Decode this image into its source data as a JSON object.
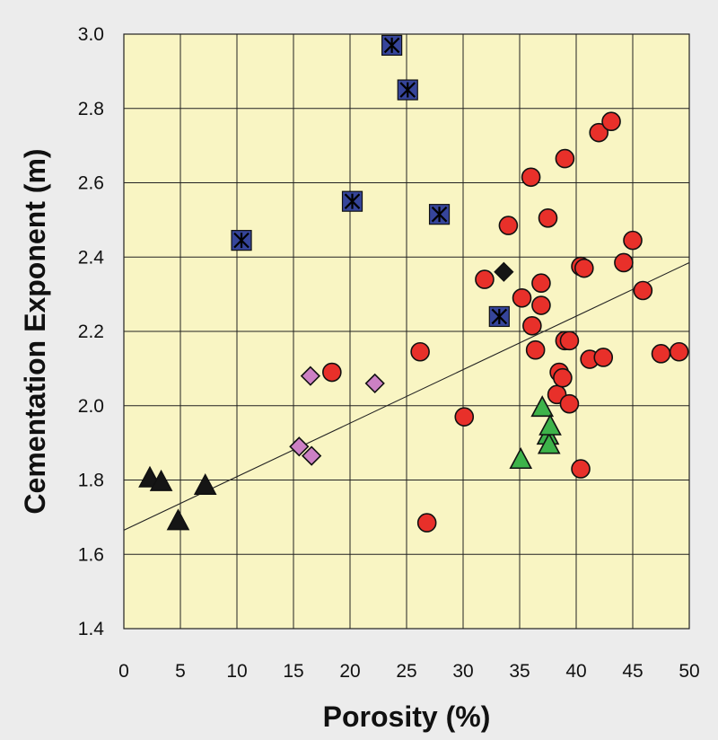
{
  "chart_data": {
    "type": "scatter",
    "title": "",
    "xlabel": "Porosity (%)",
    "ylabel": "Cementation Exponent (m)",
    "xlim": [
      0,
      50
    ],
    "ylim": [
      1.4,
      3.0
    ],
    "x_ticks": [
      0,
      5,
      10,
      15,
      20,
      25,
      30,
      35,
      40,
      45,
      50
    ],
    "y_ticks": [
      1.4,
      1.6,
      1.8,
      2.0,
      2.2,
      2.4,
      2.6,
      2.8,
      3.0
    ],
    "grid": true,
    "plot_background": "#f9f5c3",
    "trendline": {
      "x": [
        0,
        50
      ],
      "y": [
        1.665,
        2.385
      ],
      "color": "#222222"
    },
    "series": [
      {
        "marker": "circle",
        "color": "#e8302a",
        "points": [
          [
            18.4,
            2.09
          ],
          [
            26.2,
            2.145
          ],
          [
            26.8,
            1.685
          ],
          [
            30.1,
            1.97
          ],
          [
            31.9,
            2.34
          ],
          [
            34.0,
            2.485
          ],
          [
            35.2,
            2.29
          ],
          [
            36.0,
            2.615
          ],
          [
            36.1,
            2.215
          ],
          [
            36.4,
            2.15
          ],
          [
            36.9,
            2.33
          ],
          [
            36.9,
            2.27
          ],
          [
            37.5,
            2.505
          ],
          [
            38.3,
            2.03
          ],
          [
            38.5,
            2.09
          ],
          [
            38.8,
            2.075
          ],
          [
            39.0,
            2.665
          ],
          [
            39.0,
            2.175
          ],
          [
            39.4,
            2.175
          ],
          [
            39.4,
            2.005
          ],
          [
            40.4,
            2.375
          ],
          [
            40.7,
            2.37
          ],
          [
            40.4,
            1.83
          ],
          [
            41.2,
            2.125
          ],
          [
            42.0,
            2.735
          ],
          [
            42.4,
            2.13
          ],
          [
            43.1,
            2.765
          ],
          [
            44.2,
            2.385
          ],
          [
            45.0,
            2.445
          ],
          [
            45.9,
            2.31
          ],
          [
            47.5,
            2.14
          ],
          [
            49.1,
            2.145
          ]
        ]
      },
      {
        "marker": "square-star",
        "color": "#36459a",
        "points": [
          [
            10.4,
            2.445
          ],
          [
            20.2,
            2.55
          ],
          [
            23.7,
            2.97
          ],
          [
            25.1,
            2.85
          ],
          [
            27.9,
            2.515
          ],
          [
            33.2,
            2.24
          ]
        ]
      },
      {
        "marker": "diamond",
        "color": "#cc80c4",
        "points": [
          [
            15.5,
            1.89
          ],
          [
            16.5,
            2.08
          ],
          [
            16.6,
            1.865
          ],
          [
            22.2,
            2.06
          ]
        ]
      },
      {
        "marker": "diamond",
        "color": "#151515",
        "points": [
          [
            33.6,
            2.36
          ]
        ]
      },
      {
        "marker": "triangle",
        "color": "#3db34a",
        "points": [
          [
            35.1,
            1.855
          ],
          [
            37.0,
            1.995
          ],
          [
            37.5,
            1.92
          ],
          [
            37.6,
            1.895
          ],
          [
            37.7,
            1.945
          ]
        ]
      },
      {
        "marker": "triangle",
        "color": "#151515",
        "points": [
          [
            2.3,
            1.805
          ],
          [
            3.3,
            1.795
          ],
          [
            4.8,
            1.69
          ],
          [
            7.2,
            1.785
          ]
        ]
      }
    ]
  }
}
